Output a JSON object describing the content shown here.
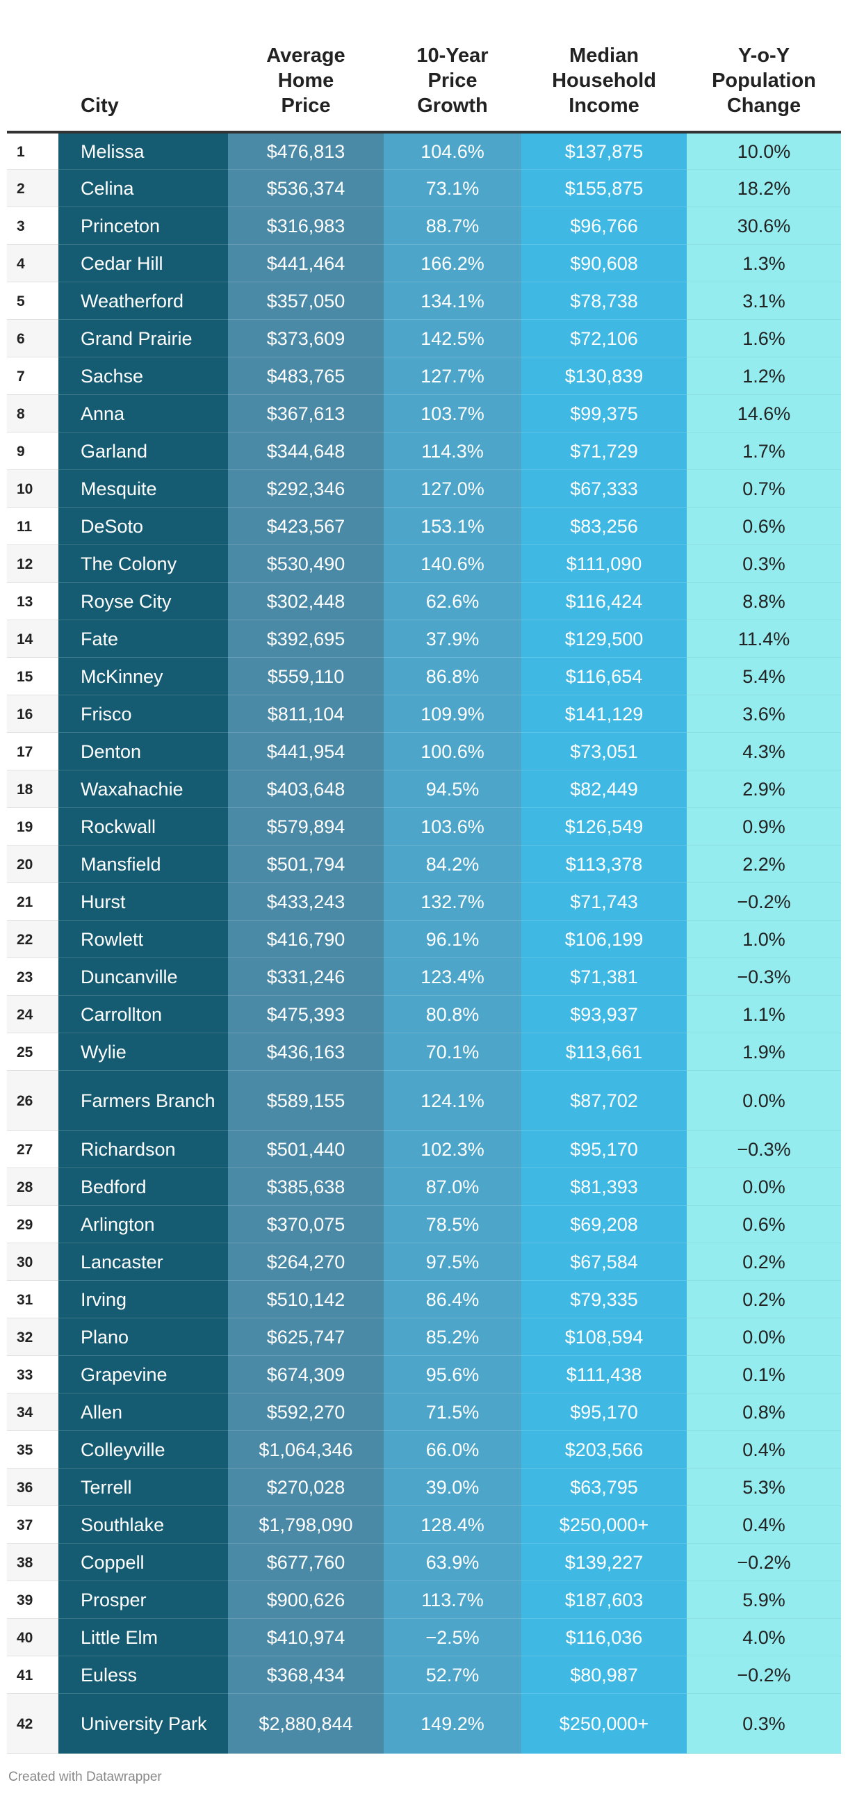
{
  "headers": {
    "rank": "",
    "city": "City",
    "price": [
      "Average",
      "Home",
      "Price"
    ],
    "growth": [
      "10-Year",
      "Price",
      "Growth"
    ],
    "income": [
      "Median",
      "Household",
      "Income"
    ],
    "pop": [
      "Y-o-Y",
      "Population",
      "Change"
    ]
  },
  "rows": [
    {
      "rank": "1",
      "city": "Melissa",
      "price": "$476,813",
      "growth": "104.6%",
      "income": "$137,875",
      "pop": "10.0%"
    },
    {
      "rank": "2",
      "city": "Celina",
      "price": "$536,374",
      "growth": "73.1%",
      "income": "$155,875",
      "pop": "18.2%"
    },
    {
      "rank": "3",
      "city": "Princeton",
      "price": "$316,983",
      "growth": "88.7%",
      "income": "$96,766",
      "pop": "30.6%"
    },
    {
      "rank": "4",
      "city": "Cedar Hill",
      "price": "$441,464",
      "growth": "166.2%",
      "income": "$90,608",
      "pop": "1.3%"
    },
    {
      "rank": "5",
      "city": "Weatherford",
      "price": "$357,050",
      "growth": "134.1%",
      "income": "$78,738",
      "pop": "3.1%"
    },
    {
      "rank": "6",
      "city": "Grand Prairie",
      "price": "$373,609",
      "growth": "142.5%",
      "income": "$72,106",
      "pop": "1.6%"
    },
    {
      "rank": "7",
      "city": "Sachse",
      "price": "$483,765",
      "growth": "127.7%",
      "income": "$130,839",
      "pop": "1.2%"
    },
    {
      "rank": "8",
      "city": "Anna",
      "price": "$367,613",
      "growth": "103.7%",
      "income": "$99,375",
      "pop": "14.6%"
    },
    {
      "rank": "9",
      "city": "Garland",
      "price": "$344,648",
      "growth": "114.3%",
      "income": "$71,729",
      "pop": "1.7%"
    },
    {
      "rank": "10",
      "city": "Mesquite",
      "price": "$292,346",
      "growth": "127.0%",
      "income": "$67,333",
      "pop": "0.7%"
    },
    {
      "rank": "11",
      "city": "DeSoto",
      "price": "$423,567",
      "growth": "153.1%",
      "income": "$83,256",
      "pop": "0.6%"
    },
    {
      "rank": "12",
      "city": "The Colony",
      "price": "$530,490",
      "growth": "140.6%",
      "income": "$111,090",
      "pop": "0.3%"
    },
    {
      "rank": "13",
      "city": "Royse City",
      "price": "$302,448",
      "growth": "62.6%",
      "income": "$116,424",
      "pop": "8.8%"
    },
    {
      "rank": "14",
      "city": "Fate",
      "price": "$392,695",
      "growth": "37.9%",
      "income": "$129,500",
      "pop": "11.4%"
    },
    {
      "rank": "15",
      "city": "McKinney",
      "price": "$559,110",
      "growth": "86.8%",
      "income": "$116,654",
      "pop": "5.4%"
    },
    {
      "rank": "16",
      "city": "Frisco",
      "price": "$811,104",
      "growth": "109.9%",
      "income": "$141,129",
      "pop": "3.6%"
    },
    {
      "rank": "17",
      "city": "Denton",
      "price": "$441,954",
      "growth": "100.6%",
      "income": "$73,051",
      "pop": "4.3%"
    },
    {
      "rank": "18",
      "city": "Waxahachie",
      "price": "$403,648",
      "growth": "94.5%",
      "income": "$82,449",
      "pop": "2.9%"
    },
    {
      "rank": "19",
      "city": "Rockwall",
      "price": "$579,894",
      "growth": "103.6%",
      "income": "$126,549",
      "pop": "0.9%"
    },
    {
      "rank": "20",
      "city": "Mansfield",
      "price": "$501,794",
      "growth": "84.2%",
      "income": "$113,378",
      "pop": "2.2%"
    },
    {
      "rank": "21",
      "city": "Hurst",
      "price": "$433,243",
      "growth": "132.7%",
      "income": "$71,743",
      "pop": "−0.2%"
    },
    {
      "rank": "22",
      "city": "Rowlett",
      "price": "$416,790",
      "growth": "96.1%",
      "income": "$106,199",
      "pop": "1.0%"
    },
    {
      "rank": "23",
      "city": "Duncanville",
      "price": "$331,246",
      "growth": "123.4%",
      "income": "$71,381",
      "pop": "−0.3%"
    },
    {
      "rank": "24",
      "city": "Carrollton",
      "price": "$475,393",
      "growth": "80.8%",
      "income": "$93,937",
      "pop": "1.1%"
    },
    {
      "rank": "25",
      "city": "Wylie",
      "price": "$436,163",
      "growth": "70.1%",
      "income": "$113,661",
      "pop": "1.9%"
    },
    {
      "rank": "26",
      "city": "Farmers Branch",
      "price": "$589,155",
      "growth": "124.1%",
      "income": "$87,702",
      "pop": "0.0%"
    },
    {
      "rank": "27",
      "city": "Richardson",
      "price": "$501,440",
      "growth": "102.3%",
      "income": "$95,170",
      "pop": "−0.3%"
    },
    {
      "rank": "28",
      "city": "Bedford",
      "price": "$385,638",
      "growth": "87.0%",
      "income": "$81,393",
      "pop": "0.0%"
    },
    {
      "rank": "29",
      "city": "Arlington",
      "price": "$370,075",
      "growth": "78.5%",
      "income": "$69,208",
      "pop": "0.6%"
    },
    {
      "rank": "30",
      "city": "Lancaster",
      "price": "$264,270",
      "growth": "97.5%",
      "income": "$67,584",
      "pop": "0.2%"
    },
    {
      "rank": "31",
      "city": "Irving",
      "price": "$510,142",
      "growth": "86.4%",
      "income": "$79,335",
      "pop": "0.2%"
    },
    {
      "rank": "32",
      "city": "Plano",
      "price": "$625,747",
      "growth": "85.2%",
      "income": "$108,594",
      "pop": "0.0%"
    },
    {
      "rank": "33",
      "city": "Grapevine",
      "price": "$674,309",
      "growth": "95.6%",
      "income": "$111,438",
      "pop": "0.1%"
    },
    {
      "rank": "34",
      "city": "Allen",
      "price": "$592,270",
      "growth": "71.5%",
      "income": "$95,170",
      "pop": "0.8%"
    },
    {
      "rank": "35",
      "city": "Colleyville",
      "price": "$1,064,346",
      "growth": "66.0%",
      "income": "$203,566",
      "pop": "0.4%"
    },
    {
      "rank": "36",
      "city": "Terrell",
      "price": "$270,028",
      "growth": "39.0%",
      "income": "$63,795",
      "pop": "5.3%"
    },
    {
      "rank": "37",
      "city": "Southlake",
      "price": "$1,798,090",
      "growth": "128.4%",
      "income": "$250,000+",
      "pop": "0.4%"
    },
    {
      "rank": "38",
      "city": "Coppell",
      "price": "$677,760",
      "growth": "63.9%",
      "income": "$139,227",
      "pop": "−0.2%"
    },
    {
      "rank": "39",
      "city": "Prosper",
      "price": "$900,626",
      "growth": "113.7%",
      "income": "$187,603",
      "pop": "5.9%"
    },
    {
      "rank": "40",
      "city": "Little Elm",
      "price": "$410,974",
      "growth": "−2.5%",
      "income": "$116,036",
      "pop": "4.0%"
    },
    {
      "rank": "41",
      "city": "Euless",
      "price": "$368,434",
      "growth": "52.7%",
      "income": "$80,987",
      "pop": "−0.2%"
    },
    {
      "rank": "42",
      "city": "University Park",
      "price": "$2,880,844",
      "growth": "149.2%",
      "income": "$250,000+",
      "pop": "0.3%"
    }
  ],
  "footer": {
    "credit": "Created with Datawrapper"
  },
  "colors": {
    "city": "#155b72",
    "price": "#4a8aa6",
    "growth": "#4da6c9",
    "income": "#3fb9e3",
    "pop": "#95ecef"
  }
}
